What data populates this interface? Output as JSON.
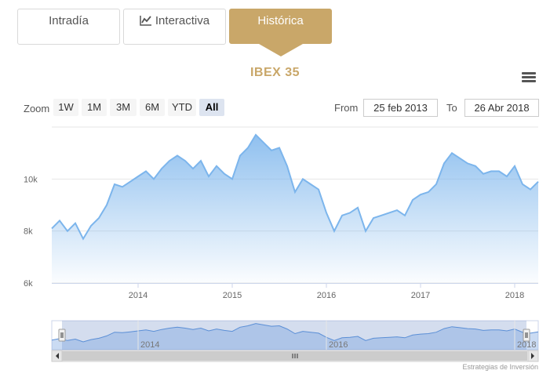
{
  "tabs": [
    {
      "label": "Intradía",
      "active": false
    },
    {
      "label": "Interactiva",
      "active": false,
      "icon": "line-chart-icon"
    },
    {
      "label": "Histórica",
      "active": true
    }
  ],
  "chart_title": "IBEX 35",
  "menu_icon": "hamburger-menu-icon",
  "zoom": {
    "label": "Zoom",
    "buttons": [
      "1W",
      "1M",
      "3M",
      "6M",
      "YTD",
      "All"
    ],
    "active": "All"
  },
  "range": {
    "from_label": "From",
    "from_value": "25 feb 2013",
    "to_label": "To",
    "to_value": "26 Abr 2018"
  },
  "credit": "Estrategias de Inversión",
  "colors": {
    "accent": "#c9a769",
    "series_line": "#7cb5ec",
    "active_zoom": "#dde4f0"
  },
  "chart_data": {
    "type": "area",
    "series": [
      {
        "name": "IBEX 35",
        "x": [
          "2013-02",
          "2013-03",
          "2013-04",
          "2013-05",
          "2013-06",
          "2013-07",
          "2013-08",
          "2013-09",
          "2013-10",
          "2013-11",
          "2013-12",
          "2014-01",
          "2014-02",
          "2014-03",
          "2014-04",
          "2014-05",
          "2014-06",
          "2014-07",
          "2014-08",
          "2014-09",
          "2014-10",
          "2014-11",
          "2014-12",
          "2015-01",
          "2015-02",
          "2015-03",
          "2015-04",
          "2015-05",
          "2015-06",
          "2015-07",
          "2015-08",
          "2015-09",
          "2015-10",
          "2015-11",
          "2015-12",
          "2016-01",
          "2016-02",
          "2016-03",
          "2016-04",
          "2016-05",
          "2016-06",
          "2016-07",
          "2016-08",
          "2016-09",
          "2016-10",
          "2016-11",
          "2016-12",
          "2017-01",
          "2017-02",
          "2017-03",
          "2017-04",
          "2017-05",
          "2017-06",
          "2017-07",
          "2017-08",
          "2017-09",
          "2017-10",
          "2017-11",
          "2017-12",
          "2018-01",
          "2018-02",
          "2018-03",
          "2018-04"
        ],
        "values": [
          8100,
          8400,
          8000,
          8300,
          7700,
          8200,
          8500,
          9000,
          9800,
          9700,
          9900,
          10100,
          10300,
          10000,
          10400,
          10700,
          10900,
          10700,
          10400,
          10700,
          10100,
          10500,
          10200,
          10000,
          10900,
          11200,
          11700,
          11400,
          11100,
          11200,
          10500,
          9500,
          10000,
          9800,
          9600,
          8700,
          8000,
          8600,
          8700,
          8900,
          8000,
          8500,
          8600,
          8700,
          8800,
          8600,
          9200,
          9400,
          9500,
          9800,
          10600,
          11000,
          10800,
          10600,
          10500,
          10200,
          10300,
          10300,
          10100,
          10500,
          9800,
          9600,
          9900
        ]
      }
    ],
    "ylim": [
      6000,
      12000
    ],
    "ytick_labels": [
      "6k",
      "8k",
      "10k"
    ],
    "xtick_labels": [
      "2014",
      "2015",
      "2016",
      "2017",
      "2018"
    ],
    "navigator_labels": [
      "2014",
      "2016",
      "2018"
    ],
    "grid": true,
    "legend": false
  }
}
